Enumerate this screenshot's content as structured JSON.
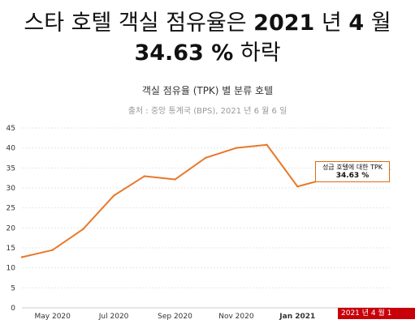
{
  "headline": {
    "line1_a": "스타 호텔 객실 점유율은 ",
    "line1_b": "2021",
    "line1_c": " 년 ",
    "line1_d": "4",
    "line1_e": " 월",
    "line2_a": "34.63 %",
    "line2_b": " 하락"
  },
  "tooltip": {
    "label": "성급 호텔에 대한 TPK",
    "value": "34.63 %"
  },
  "hover_label": "2021 년 4 월 1",
  "colors": {
    "line": "#e8792a",
    "accent": "#c8000a"
  },
  "chart_data": {
    "type": "line",
    "title": "객실 점유율 (TPK) 별 분류 호텔",
    "subtitle": "출처 : 중앙 통계국 (BPS), 2021 년 6 월 6 일",
    "xlabel": "",
    "ylabel": "",
    "x": [
      "Apr 2020",
      "May 2020",
      "Jun 2020",
      "Jul 2020",
      "Aug 2020",
      "Sep 2020",
      "Oct 2020",
      "Nov 2020",
      "Dec 2020",
      "Jan 2021",
      "Feb 2021",
      "Mar 2021",
      "Apr 2021"
    ],
    "values": [
      12.67,
      14.45,
      19.7,
      28.07,
      32.93,
      32.12,
      37.53,
      40.0,
      40.79,
      30.35,
      32.4,
      34.3,
      34.63
    ],
    "ylim": [
      0,
      45
    ],
    "yticks": [
      0,
      5,
      10,
      15,
      20,
      25,
      30,
      35,
      40,
      45
    ],
    "xtick_labels": [
      "May 2020",
      "Jul 2020",
      "Sep 2020",
      "Nov 2020",
      "Jan 2021"
    ],
    "xtick_indices": [
      1,
      3,
      5,
      7,
      9
    ],
    "grid": true
  }
}
